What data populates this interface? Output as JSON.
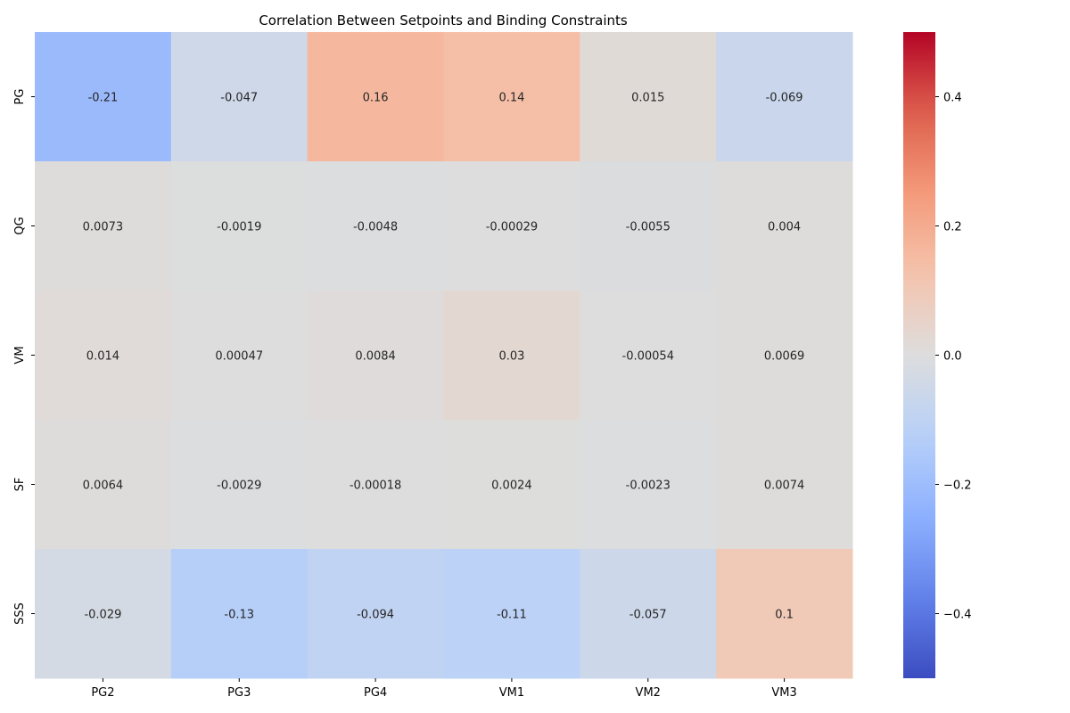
{
  "chart_data": {
    "type": "heatmap",
    "title": "Correlation Between Setpoints and Binding Constraints",
    "xlabel": "",
    "ylabel": "",
    "x_categories": [
      "PG2",
      "PG3",
      "PG4",
      "VM1",
      "VM2",
      "VM3"
    ],
    "y_categories": [
      "PG",
      "QG",
      "VM",
      "SF",
      "SSS"
    ],
    "values": [
      [
        -0.21,
        -0.047,
        0.16,
        0.14,
        0.015,
        -0.069
      ],
      [
        0.0073,
        -0.0019,
        -0.0048,
        -0.00029,
        -0.0055,
        0.004
      ],
      [
        0.014,
        0.00047,
        0.0084,
        0.03,
        -0.00054,
        0.0069
      ],
      [
        0.0064,
        -0.0029,
        -0.00018,
        0.0024,
        -0.0023,
        0.0074
      ],
      [
        -0.029,
        -0.13,
        -0.094,
        -0.11,
        -0.057,
        0.1
      ]
    ],
    "labels": [
      [
        "-0.21",
        "-0.047",
        "0.16",
        "0.14",
        "0.015",
        "-0.069"
      ],
      [
        "0.0073",
        "-0.0019",
        "-0.0048",
        "-0.00029",
        "-0.0055",
        "0.004"
      ],
      [
        "0.014",
        "0.00047",
        "0.0084",
        "0.03",
        "-0.00054",
        "0.0069"
      ],
      [
        "0.0064",
        "-0.0029",
        "-0.00018",
        "0.0024",
        "-0.0023",
        "0.0074"
      ],
      [
        "-0.029",
        "-0.13",
        "-0.094",
        "-0.11",
        "-0.057",
        "0.1"
      ]
    ],
    "colormap": "coolwarm",
    "vmin": -0.5,
    "vmax": 0.5,
    "colorbar_ticks": [
      -0.4,
      -0.2,
      0.0,
      0.2,
      0.4
    ],
    "colorbar_tick_labels": [
      "−0.4",
      "−0.2",
      "0.0",
      "0.2",
      "0.4"
    ],
    "colors": {
      "low": "#3b4cc0",
      "mid": "#dddcdc",
      "high": "#b40426",
      "text": "#262626"
    }
  }
}
